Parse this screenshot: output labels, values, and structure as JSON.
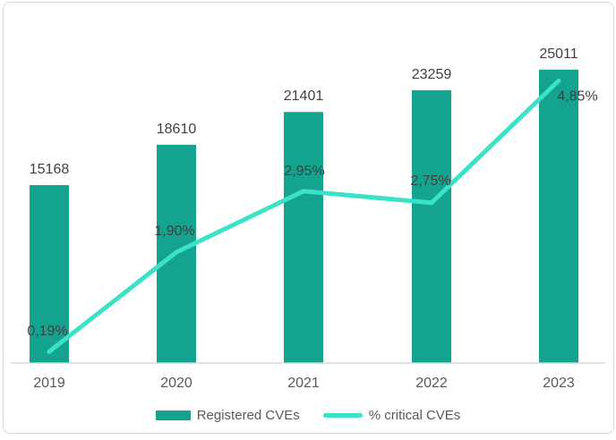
{
  "page": {
    "background_color": "#ffffff",
    "border_color": "#d9d9d9"
  },
  "chart_data": {
    "type": "combo-bar-line",
    "title": "",
    "categories": [
      "2019",
      "2020",
      "2021",
      "2022",
      "2023"
    ],
    "series": [
      {
        "name": "Registered CVEs",
        "type": "bar",
        "color": "#14a38f",
        "values": [
          15168,
          18610,
          21401,
          23259,
          25011
        ],
        "labels": [
          "15168",
          "18610",
          "21401",
          "23259",
          "25011"
        ]
      },
      {
        "name": "% critical CVEs",
        "type": "line",
        "color": "#3ce2c8",
        "values": [
          0.19,
          1.9,
          2.95,
          2.75,
          4.85
        ],
        "labels": [
          "0,19%",
          "1,90%",
          "2,95%",
          "2,75%",
          "4,85%"
        ]
      }
    ],
    "axes": {
      "x_tick_labels": [
        "2019",
        "2020",
        "2021",
        "2022",
        "2023"
      ],
      "y_left_range": [
        0,
        27000
      ],
      "y_right_range": [
        0,
        5.5
      ],
      "gridlines": false,
      "y_axis_visible": false,
      "axis_line_color": "#d9d9d9"
    },
    "legend": {
      "position": "bottom",
      "entries": [
        {
          "label": "Registered CVEs",
          "swatch": "bar",
          "color": "#14a38f"
        },
        {
          "label": "% critical CVEs",
          "swatch": "line",
          "color": "#3ce2c8"
        }
      ]
    },
    "value_label_color": "#404040",
    "tick_label_color": "#595959"
  }
}
